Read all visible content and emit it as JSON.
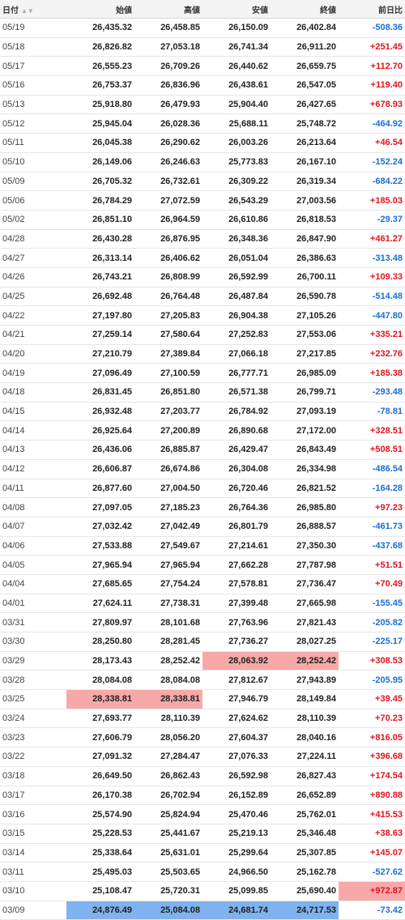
{
  "header": {
    "date": "日付",
    "open": "始値",
    "high": "高値",
    "low": "安値",
    "close": "終値",
    "change": "前日比"
  },
  "rows": [
    {
      "date": "05/19",
      "open": "26,435.32",
      "high": "26,458.85",
      "low": "26,150.09",
      "close": "26,402.84",
      "change": "-508.36",
      "dir": "neg",
      "hl": []
    },
    {
      "date": "05/18",
      "open": "26,826.82",
      "high": "27,053.18",
      "low": "26,741.34",
      "close": "26,911.20",
      "change": "+251.45",
      "dir": "pos",
      "hl": []
    },
    {
      "date": "05/17",
      "open": "26,555.23",
      "high": "26,709.26",
      "low": "26,440.62",
      "close": "26,659.75",
      "change": "+112.70",
      "dir": "pos",
      "hl": []
    },
    {
      "date": "05/16",
      "open": "26,753.37",
      "high": "26,836.96",
      "low": "26,438.61",
      "close": "26,547.05",
      "change": "+119.40",
      "dir": "pos",
      "hl": []
    },
    {
      "date": "05/13",
      "open": "25,918.80",
      "high": "26,479.93",
      "low": "25,904.40",
      "close": "26,427.65",
      "change": "+678.93",
      "dir": "pos",
      "hl": []
    },
    {
      "date": "05/12",
      "open": "25,945.04",
      "high": "26,028.36",
      "low": "25,688.11",
      "close": "25,748.72",
      "change": "-464.92",
      "dir": "neg",
      "hl": []
    },
    {
      "date": "05/11",
      "open": "26,045.38",
      "high": "26,290.62",
      "low": "26,003.26",
      "close": "26,213.64",
      "change": "+46.54",
      "dir": "pos",
      "hl": []
    },
    {
      "date": "05/10",
      "open": "26,149.06",
      "high": "26,246.63",
      "low": "25,773.83",
      "close": "26,167.10",
      "change": "-152.24",
      "dir": "neg",
      "hl": []
    },
    {
      "date": "05/09",
      "open": "26,705.32",
      "high": "26,732.61",
      "low": "26,309.22",
      "close": "26,319.34",
      "change": "-684.22",
      "dir": "neg",
      "hl": []
    },
    {
      "date": "05/06",
      "open": "26,784.29",
      "high": "27,072.59",
      "low": "26,543.29",
      "close": "27,003.56",
      "change": "+185.03",
      "dir": "pos",
      "hl": []
    },
    {
      "date": "05/02",
      "open": "26,851.10",
      "high": "26,964.59",
      "low": "26,610.86",
      "close": "26,818.53",
      "change": "-29.37",
      "dir": "neg",
      "hl": []
    },
    {
      "date": "04/28",
      "open": "26,430.28",
      "high": "26,876.95",
      "low": "26,348.36",
      "close": "26,847.90",
      "change": "+461.27",
      "dir": "pos",
      "hl": []
    },
    {
      "date": "04/27",
      "open": "26,313.14",
      "high": "26,406.62",
      "low": "26,051.04",
      "close": "26,386.63",
      "change": "-313.48",
      "dir": "neg",
      "hl": []
    },
    {
      "date": "04/26",
      "open": "26,743.21",
      "high": "26,808.99",
      "low": "26,592.99",
      "close": "26,700.11",
      "change": "+109.33",
      "dir": "pos",
      "hl": []
    },
    {
      "date": "04/25",
      "open": "26,692.48",
      "high": "26,764.48",
      "low": "26,487.84",
      "close": "26,590.78",
      "change": "-514.48",
      "dir": "neg",
      "hl": []
    },
    {
      "date": "04/22",
      "open": "27,197.80",
      "high": "27,205.83",
      "low": "26,904.38",
      "close": "27,105.26",
      "change": "-447.80",
      "dir": "neg",
      "hl": []
    },
    {
      "date": "04/21",
      "open": "27,259.14",
      "high": "27,580.64",
      "low": "27,252.83",
      "close": "27,553.06",
      "change": "+335.21",
      "dir": "pos",
      "hl": []
    },
    {
      "date": "04/20",
      "open": "27,210.79",
      "high": "27,389.84",
      "low": "27,066.18",
      "close": "27,217.85",
      "change": "+232.76",
      "dir": "pos",
      "hl": []
    },
    {
      "date": "04/19",
      "open": "27,096.49",
      "high": "27,100.59",
      "low": "26,777.71",
      "close": "26,985.09",
      "change": "+185.38",
      "dir": "pos",
      "hl": []
    },
    {
      "date": "04/18",
      "open": "26,831.45",
      "high": "26,851.80",
      "low": "26,571.38",
      "close": "26,799.71",
      "change": "-293.48",
      "dir": "neg",
      "hl": []
    },
    {
      "date": "04/15",
      "open": "26,932.48",
      "high": "27,203.77",
      "low": "26,784.92",
      "close": "27,093.19",
      "change": "-78.81",
      "dir": "neg",
      "hl": []
    },
    {
      "date": "04/14",
      "open": "26,925.64",
      "high": "27,200.89",
      "low": "26,890.68",
      "close": "27,172.00",
      "change": "+328.51",
      "dir": "pos",
      "hl": []
    },
    {
      "date": "04/13",
      "open": "26,436.06",
      "high": "26,885.87",
      "low": "26,429.47",
      "close": "26,843.49",
      "change": "+508.51",
      "dir": "pos",
      "hl": []
    },
    {
      "date": "04/12",
      "open": "26,606.87",
      "high": "26,674.86",
      "low": "26,304.08",
      "close": "26,334.98",
      "change": "-486.54",
      "dir": "neg",
      "hl": []
    },
    {
      "date": "04/11",
      "open": "26,877.60",
      "high": "27,004.50",
      "low": "26,720.46",
      "close": "26,821.52",
      "change": "-164.28",
      "dir": "neg",
      "hl": []
    },
    {
      "date": "04/08",
      "open": "27,097.05",
      "high": "27,185.23",
      "low": "26,764.36",
      "close": "26,985.80",
      "change": "+97.23",
      "dir": "pos",
      "hl": []
    },
    {
      "date": "04/07",
      "open": "27,032.42",
      "high": "27,042.49",
      "low": "26,801.79",
      "close": "26,888.57",
      "change": "-461.73",
      "dir": "neg",
      "hl": []
    },
    {
      "date": "04/06",
      "open": "27,533.88",
      "high": "27,549.67",
      "low": "27,214.61",
      "close": "27,350.30",
      "change": "-437.68",
      "dir": "neg",
      "hl": []
    },
    {
      "date": "04/05",
      "open": "27,965.94",
      "high": "27,965.94",
      "low": "27,662.28",
      "close": "27,787.98",
      "change": "+51.51",
      "dir": "pos",
      "hl": []
    },
    {
      "date": "04/04",
      "open": "27,685.65",
      "high": "27,754.24",
      "low": "27,578.81",
      "close": "27,736.47",
      "change": "+70.49",
      "dir": "pos",
      "hl": []
    },
    {
      "date": "04/01",
      "open": "27,624.11",
      "high": "27,738.31",
      "low": "27,399.48",
      "close": "27,665.98",
      "change": "-155.45",
      "dir": "neg",
      "hl": []
    },
    {
      "date": "03/31",
      "open": "27,809.97",
      "high": "28,101.68",
      "low": "27,763.96",
      "close": "27,821.43",
      "change": "-205.82",
      "dir": "neg",
      "hl": []
    },
    {
      "date": "03/30",
      "open": "28,250.80",
      "high": "28,281.45",
      "low": "27,736.27",
      "close": "28,027.25",
      "change": "-225.17",
      "dir": "neg",
      "hl": []
    },
    {
      "date": "03/29",
      "open": "28,173.43",
      "high": "28,252.42",
      "low": "28,063.92",
      "close": "28,252.42",
      "change": "+308.53",
      "dir": "pos",
      "hl": [
        "low",
        "close"
      ]
    },
    {
      "date": "03/28",
      "open": "28,084.08",
      "high": "28,084.08",
      "low": "27,812.67",
      "close": "27,943.89",
      "change": "-205.95",
      "dir": "neg",
      "hl": []
    },
    {
      "date": "03/25",
      "open": "28,338.81",
      "high": "28,338.81",
      "low": "27,946.79",
      "close": "28,149.84",
      "change": "+39.45",
      "dir": "pos",
      "hl": [
        "open",
        "high"
      ]
    },
    {
      "date": "03/24",
      "open": "27,693.77",
      "high": "28,110.39",
      "low": "27,624.62",
      "close": "28,110.39",
      "change": "+70.23",
      "dir": "pos",
      "hl": []
    },
    {
      "date": "03/23",
      "open": "27,606.79",
      "high": "28,056.20",
      "low": "27,604.37",
      "close": "28,040.16",
      "change": "+816.05",
      "dir": "pos",
      "hl": []
    },
    {
      "date": "03/22",
      "open": "27,091.32",
      "high": "27,284.47",
      "low": "27,076.33",
      "close": "27,224.11",
      "change": "+396.68",
      "dir": "pos",
      "hl": []
    },
    {
      "date": "03/18",
      "open": "26,649.50",
      "high": "26,862.43",
      "low": "26,592.98",
      "close": "26,827.43",
      "change": "+174.54",
      "dir": "pos",
      "hl": []
    },
    {
      "date": "03/17",
      "open": "26,170.38",
      "high": "26,702.94",
      "low": "26,152.89",
      "close": "26,652.89",
      "change": "+890.88",
      "dir": "pos",
      "hl": []
    },
    {
      "date": "03/16",
      "open": "25,574.90",
      "high": "25,824.94",
      "low": "25,470.46",
      "close": "25,762.01",
      "change": "+415.53",
      "dir": "pos",
      "hl": []
    },
    {
      "date": "03/15",
      "open": "25,228.53",
      "high": "25,441.67",
      "low": "25,219.13",
      "close": "25,346.48",
      "change": "+38.63",
      "dir": "pos",
      "hl": []
    },
    {
      "date": "03/14",
      "open": "25,338.64",
      "high": "25,631.01",
      "low": "25,299.64",
      "close": "25,307.85",
      "change": "+145.07",
      "dir": "pos",
      "hl": []
    },
    {
      "date": "03/11",
      "open": "25,495.03",
      "high": "25,503.65",
      "low": "24,966.50",
      "close": "25,162.78",
      "change": "-527.62",
      "dir": "neg",
      "hl": []
    },
    {
      "date": "03/10",
      "open": "25,108.47",
      "high": "25,720.31",
      "low": "25,099.85",
      "close": "25,690.40",
      "change": "+972.87",
      "dir": "pos",
      "hl": [
        "change"
      ]
    },
    {
      "date": "03/09",
      "open": "24,876.49",
      "high": "25,084.08",
      "low": "24,681.74",
      "close": "24,717.53",
      "change": "-73.42",
      "dir": "neg",
      "hl": [
        "open",
        "high",
        "low",
        "close"
      ]
    }
  ],
  "highlight_colors": {
    "red": "#f7a9a9",
    "blue": "#7fb2ee"
  }
}
